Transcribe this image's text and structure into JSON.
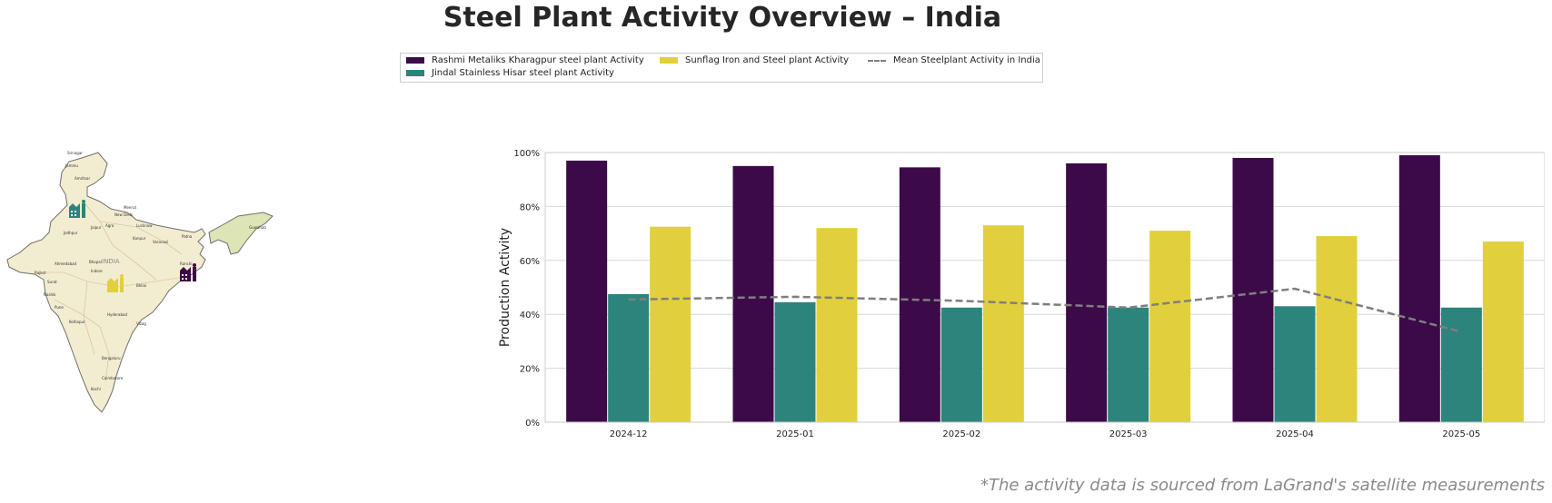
{
  "title": "Steel Plant Activity Overview – India",
  "footnote": "*The activity data is sourced from LaGrand's satellite measurements",
  "legend": [
    {
      "label": "Rashmi Metaliks Kharagpur steel plant Activity",
      "color": "#3c0a48"
    },
    {
      "label": "Jindal Stainless Hisar steel plant Activity",
      "color": "#2c847c"
    },
    {
      "label": "Sunflag Iron and Steel plant Activity",
      "color": "#e1d03b"
    },
    {
      "label": "Mean Steelplant Activity in India",
      "color": "#7f7f7f"
    }
  ],
  "map": {
    "country_label": "INDIA",
    "cities": [
      "Srinagar",
      "Jammu",
      "Amritsar",
      "Meerut",
      "New Delhi",
      "Jaipur",
      "Agra",
      "Lucknow",
      "Jodhpur",
      "Kanpur",
      "Varanasi",
      "Patna",
      "Guwahati",
      "Ahmedabad",
      "Bhopal",
      "Indore",
      "Rajkot",
      "Surat",
      "Ranchi",
      "Nashik",
      "Bhilai",
      "Pune",
      "Hyderabad",
      "Kolhapur",
      "Vizag",
      "Bengaluru",
      "Coimbatore",
      "Kochi"
    ],
    "plant_icons": [
      {
        "name": "Jindal Stainless Hisar",
        "color": "#2c847c"
      },
      {
        "name": "Sunflag Iron and Steel",
        "color": "#e1d03b"
      },
      {
        "name": "Rashmi Metaliks Kharagpur",
        "color": "#3c0a48"
      }
    ]
  },
  "chart_data": {
    "type": "bar",
    "title": "Steel Plant Activity Overview – India",
    "ylabel": "Production Activity",
    "xlabel": "",
    "categories": [
      "2024-12",
      "2025-01",
      "2025-02",
      "2025-03",
      "2025-04",
      "2025-05"
    ],
    "ylim": [
      0,
      100
    ],
    "yticks": [
      "0%",
      "20%",
      "40%",
      "60%",
      "80%",
      "100%"
    ],
    "grid": true,
    "legend_position": "top-center",
    "series": [
      {
        "name": "Rashmi Metaliks Kharagpur steel plant Activity",
        "color": "#3c0a48",
        "values": [
          97,
          95,
          94.5,
          96,
          98,
          99
        ]
      },
      {
        "name": "Jindal Stainless Hisar steel plant Activity",
        "color": "#2c847c",
        "values": [
          47.5,
          44.5,
          42.5,
          42.5,
          43,
          42.5
        ]
      },
      {
        "name": "Sunflag Iron and Steel plant Activity",
        "color": "#e1d03b",
        "values": [
          72.5,
          72,
          73,
          71,
          69,
          67
        ]
      }
    ],
    "mean_line": {
      "name": "Mean Steelplant Activity in India",
      "color": "#7f7f7f",
      "style": "dashed",
      "values": [
        45.5,
        46.5,
        45,
        42.5,
        49.5,
        33.5
      ]
    }
  }
}
